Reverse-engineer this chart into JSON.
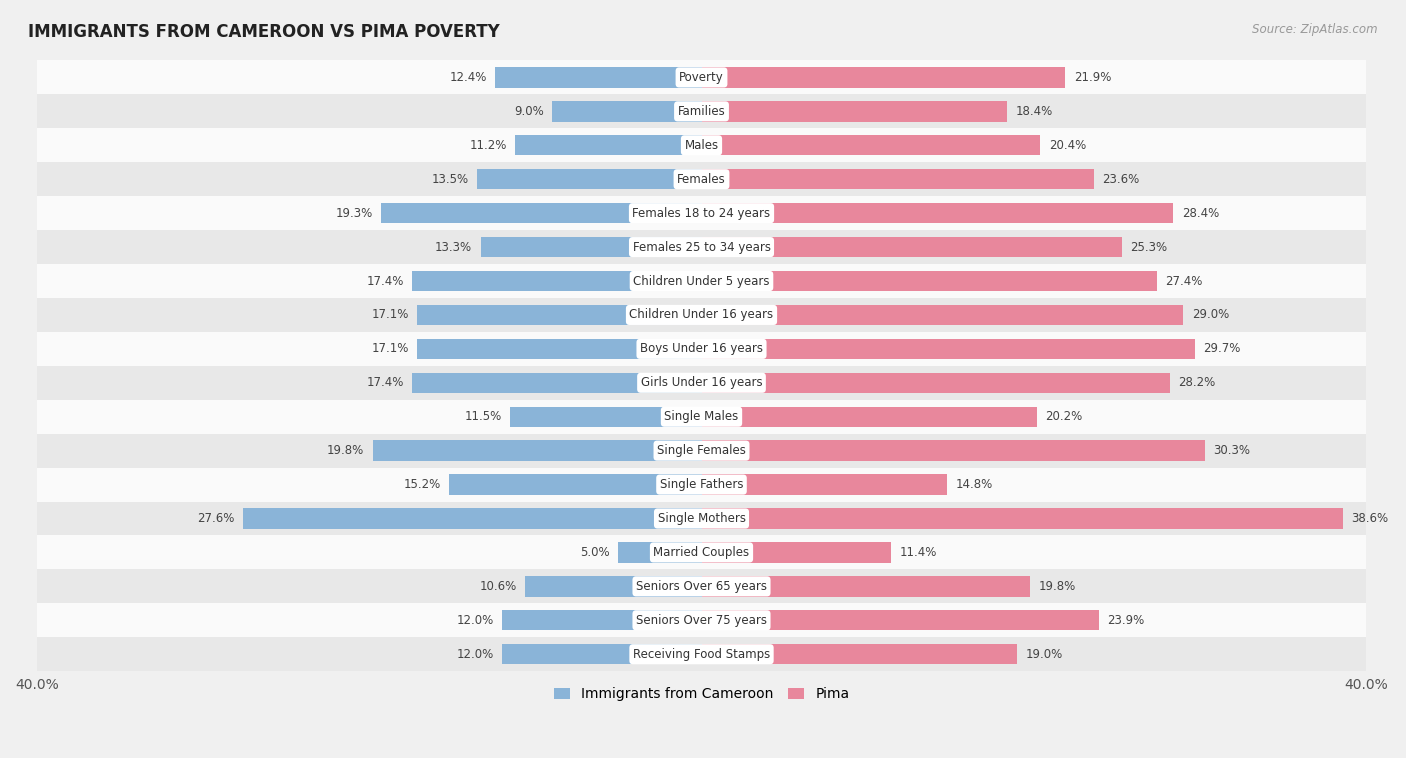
{
  "title": "IMMIGRANTS FROM CAMEROON VS PIMA POVERTY",
  "source": "Source: ZipAtlas.com",
  "categories": [
    "Poverty",
    "Families",
    "Males",
    "Females",
    "Females 18 to 24 years",
    "Females 25 to 34 years",
    "Children Under 5 years",
    "Children Under 16 years",
    "Boys Under 16 years",
    "Girls Under 16 years",
    "Single Males",
    "Single Females",
    "Single Fathers",
    "Single Mothers",
    "Married Couples",
    "Seniors Over 65 years",
    "Seniors Over 75 years",
    "Receiving Food Stamps"
  ],
  "cameroon_values": [
    12.4,
    9.0,
    11.2,
    13.5,
    19.3,
    13.3,
    17.4,
    17.1,
    17.1,
    17.4,
    11.5,
    19.8,
    15.2,
    27.6,
    5.0,
    10.6,
    12.0,
    12.0
  ],
  "pima_values": [
    21.9,
    18.4,
    20.4,
    23.6,
    28.4,
    25.3,
    27.4,
    29.0,
    29.7,
    28.2,
    20.2,
    30.3,
    14.8,
    38.6,
    11.4,
    19.8,
    23.9,
    19.0
  ],
  "cameroon_color": "#8ab4d8",
  "pima_color": "#e8879c",
  "background_color": "#f0f0f0",
  "row_bg_light": "#fafafa",
  "row_bg_dark": "#e8e8e8",
  "x_max": 40.0,
  "legend_cameroon": "Immigrants from Cameroon",
  "legend_pima": "Pima",
  "bar_height": 0.6
}
